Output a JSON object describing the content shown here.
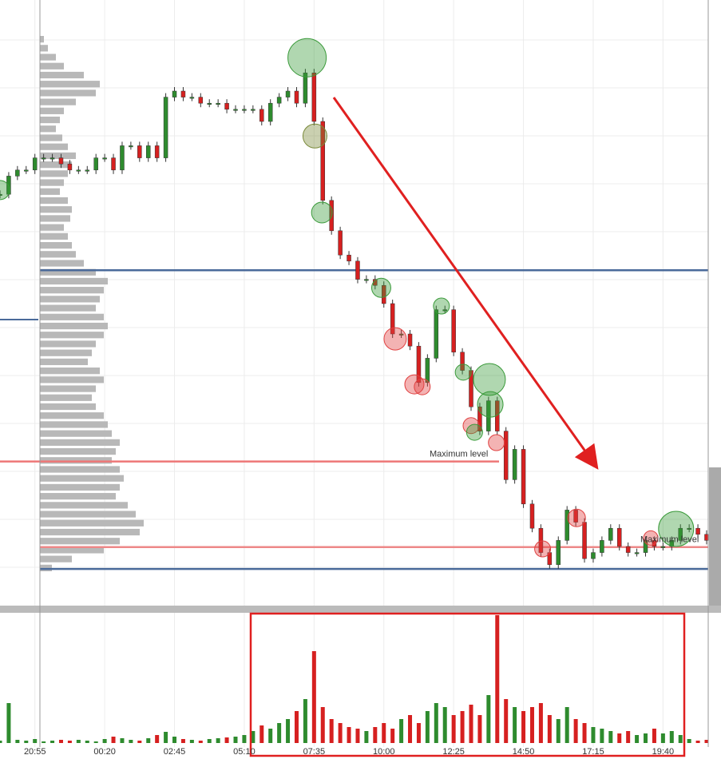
{
  "chart_data": {
    "type": "candlestick",
    "xlim": [
      0,
      81
    ],
    "xticks": [
      {
        "value": 4,
        "label": "20:55"
      },
      {
        "value": 12,
        "label": "00:20"
      },
      {
        "value": 20,
        "label": "02:45"
      },
      {
        "value": 28,
        "label": "05:10"
      },
      {
        "value": 36,
        "label": "07:35"
      },
      {
        "value": 44,
        "label": "10:00"
      },
      {
        "value": 52,
        "label": "12:25"
      },
      {
        "value": 60,
        "label": "14:50"
      },
      {
        "value": 68,
        "label": "17:15"
      },
      {
        "value": 76,
        "label": "19:40"
      }
    ],
    "ylim": [
      0,
      100
    ],
    "up_color": "#2e8b2e",
    "down_color": "#d62020",
    "close": [
      68,
      71,
      72,
      72,
      74,
      74,
      74,
      73,
      72,
      72,
      72,
      74,
      74,
      72,
      76,
      76,
      74,
      76,
      74,
      84,
      85,
      84,
      84,
      83,
      83,
      83,
      82,
      82,
      82,
      82,
      80,
      83,
      84,
      85,
      83,
      88,
      80,
      67,
      62,
      58,
      57,
      54,
      54,
      53,
      50,
      45,
      45,
      43,
      37,
      41,
      49,
      49,
      42,
      39,
      33,
      29,
      34,
      29,
      21,
      26,
      17,
      13,
      9,
      7,
      11,
      16,
      14,
      8,
      9,
      11,
      13,
      10,
      9,
      9,
      11,
      10,
      10,
      11,
      13,
      13,
      12,
      11
    ],
    "volume": {
      "ylim": [
        0,
        160
      ],
      "values": [
        3,
        50,
        4,
        3,
        5,
        2,
        3,
        4,
        3,
        4,
        3,
        2,
        5,
        8,
        6,
        4,
        3,
        6,
        10,
        14,
        8,
        5,
        4,
        3,
        5,
        6,
        7,
        8,
        10,
        15,
        22,
        18,
        25,
        30,
        40,
        55,
        115,
        45,
        30,
        25,
        20,
        18,
        15,
        20,
        25,
        18,
        30,
        35,
        25,
        40,
        50,
        45,
        35,
        40,
        48,
        35,
        60,
        160,
        55,
        45,
        40,
        45,
        50,
        35,
        30,
        45,
        30,
        25,
        20,
        18,
        15,
        12,
        15,
        10,
        12,
        18,
        12,
        15,
        10,
        5,
        3,
        4
      ]
    },
    "profile": [
      5,
      10,
      20,
      30,
      55,
      75,
      70,
      45,
      30,
      25,
      20,
      28,
      35,
      45,
      40,
      35,
      30,
      25,
      35,
      40,
      38,
      30,
      35,
      40,
      45,
      55,
      70,
      85,
      80,
      75,
      70,
      80,
      85,
      80,
      70,
      65,
      60,
      75,
      80,
      70,
      65,
      70,
      80,
      85,
      90,
      100,
      95,
      90,
      100,
      105,
      100,
      95,
      110,
      120,
      130,
      125,
      100,
      80,
      40,
      15
    ],
    "levels": [
      {
        "value": 55.5,
        "color": "#4a6a9a"
      },
      {
        "value": 6.3,
        "color": "#4a6a9a"
      },
      {
        "value": 24,
        "color": "#ee7777",
        "label": "Maximum level"
      },
      {
        "value": 9.9,
        "color": "#ee8888",
        "label": "Maximum level"
      }
    ],
    "bubbles": [
      {
        "x": 35.2,
        "y": 90.5,
        "size": 24,
        "color": "#3a9a3a"
      },
      {
        "x": 36.1,
        "y": 77.6,
        "size": 15,
        "color": "#7a8a3a"
      },
      {
        "x": 36.9,
        "y": 65,
        "size": 13,
        "color": "#3a9a3a"
      },
      {
        "x": 43.7,
        "y": 52.6,
        "size": 12,
        "color": "#3a9a3a"
      },
      {
        "x": 45.3,
        "y": 44.2,
        "size": 14,
        "color": "#e04040"
      },
      {
        "x": 47.5,
        "y": 36.7,
        "size": 12,
        "color": "#e04040"
      },
      {
        "x": 48.4,
        "y": 36.3,
        "size": 10,
        "color": "#e04040"
      },
      {
        "x": 50.6,
        "y": 49.6,
        "size": 10,
        "color": "#3a9a3a"
      },
      {
        "x": 53.1,
        "y": 38.7,
        "size": 10,
        "color": "#3a9a3a"
      },
      {
        "x": 56.1,
        "y": 37.5,
        "size": 20,
        "color": "#3a9a3a"
      },
      {
        "x": 56.2,
        "y": 33.4,
        "size": 16,
        "color": "#3a9a3a"
      },
      {
        "x": 54,
        "y": 29.9,
        "size": 10,
        "color": "#e04040"
      },
      {
        "x": 54.4,
        "y": 28.8,
        "size": 10,
        "color": "#3a9a3a"
      },
      {
        "x": 56.9,
        "y": 27.1,
        "size": 10,
        "color": "#e04040"
      },
      {
        "x": 62.2,
        "y": 9.6,
        "size": 10,
        "color": "#e04040"
      },
      {
        "x": 66.1,
        "y": 14.7,
        "size": 11,
        "color": "#e04040"
      },
      {
        "x": 74.6,
        "y": 11.4,
        "size": 9,
        "color": "#e04040"
      },
      {
        "x": 77.5,
        "y": 12.9,
        "size": 22,
        "color": "#3a9a3a"
      },
      {
        "x": 0,
        "y": 68.7,
        "size": 12,
        "color": "#3a9a3a"
      }
    ]
  }
}
